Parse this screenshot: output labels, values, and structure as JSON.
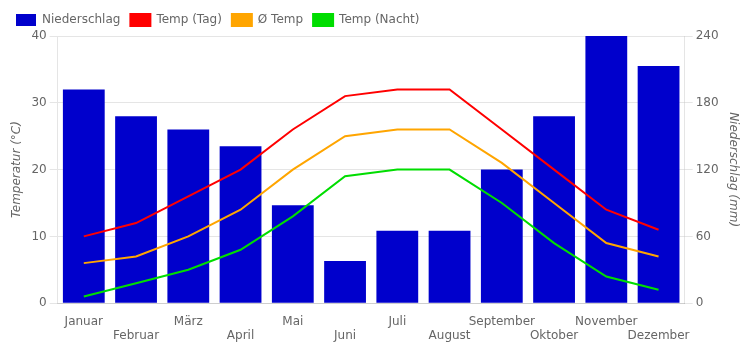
{
  "chart_data": {
    "type": "bar",
    "categories": [
      "Januar",
      "Februar",
      "März",
      "April",
      "Mai",
      "Juni",
      "Juli",
      "August",
      "September",
      "Oktober",
      "November",
      "Dezember"
    ],
    "series": [
      {
        "name": "Niederschlag",
        "type": "bar",
        "axis": "y2",
        "color": "#0000cc",
        "values": [
          192,
          168,
          156,
          141,
          88,
          38,
          65,
          65,
          120,
          168,
          240,
          213
        ]
      },
      {
        "name": "Temp (Tag)",
        "type": "line",
        "color": "#ff0000",
        "values": [
          10,
          12,
          16,
          20,
          26,
          31,
          32,
          32,
          26,
          20,
          14,
          11
        ]
      },
      {
        "name": "Ø Temp",
        "type": "line",
        "color": "#ffa500",
        "values": [
          6,
          7,
          10,
          14,
          20,
          25,
          26,
          26,
          21,
          15,
          9,
          7
        ]
      },
      {
        "name": "Temp (Nacht)",
        "type": "line",
        "color": "#00dd00",
        "values": [
          1,
          3,
          5,
          8,
          13,
          19,
          20,
          20,
          15,
          9,
          4,
          2
        ]
      }
    ],
    "ylabel": "Temperatur (°C)",
    "y2label": "Niederschlag (mm)",
    "ylim": [
      0,
      40
    ],
    "yticks": [
      0,
      10,
      20,
      30,
      40
    ],
    "y2lim": [
      0,
      240
    ],
    "y2ticks": [
      0,
      60,
      120,
      180,
      240
    ],
    "grid": true,
    "legend": "top left"
  }
}
